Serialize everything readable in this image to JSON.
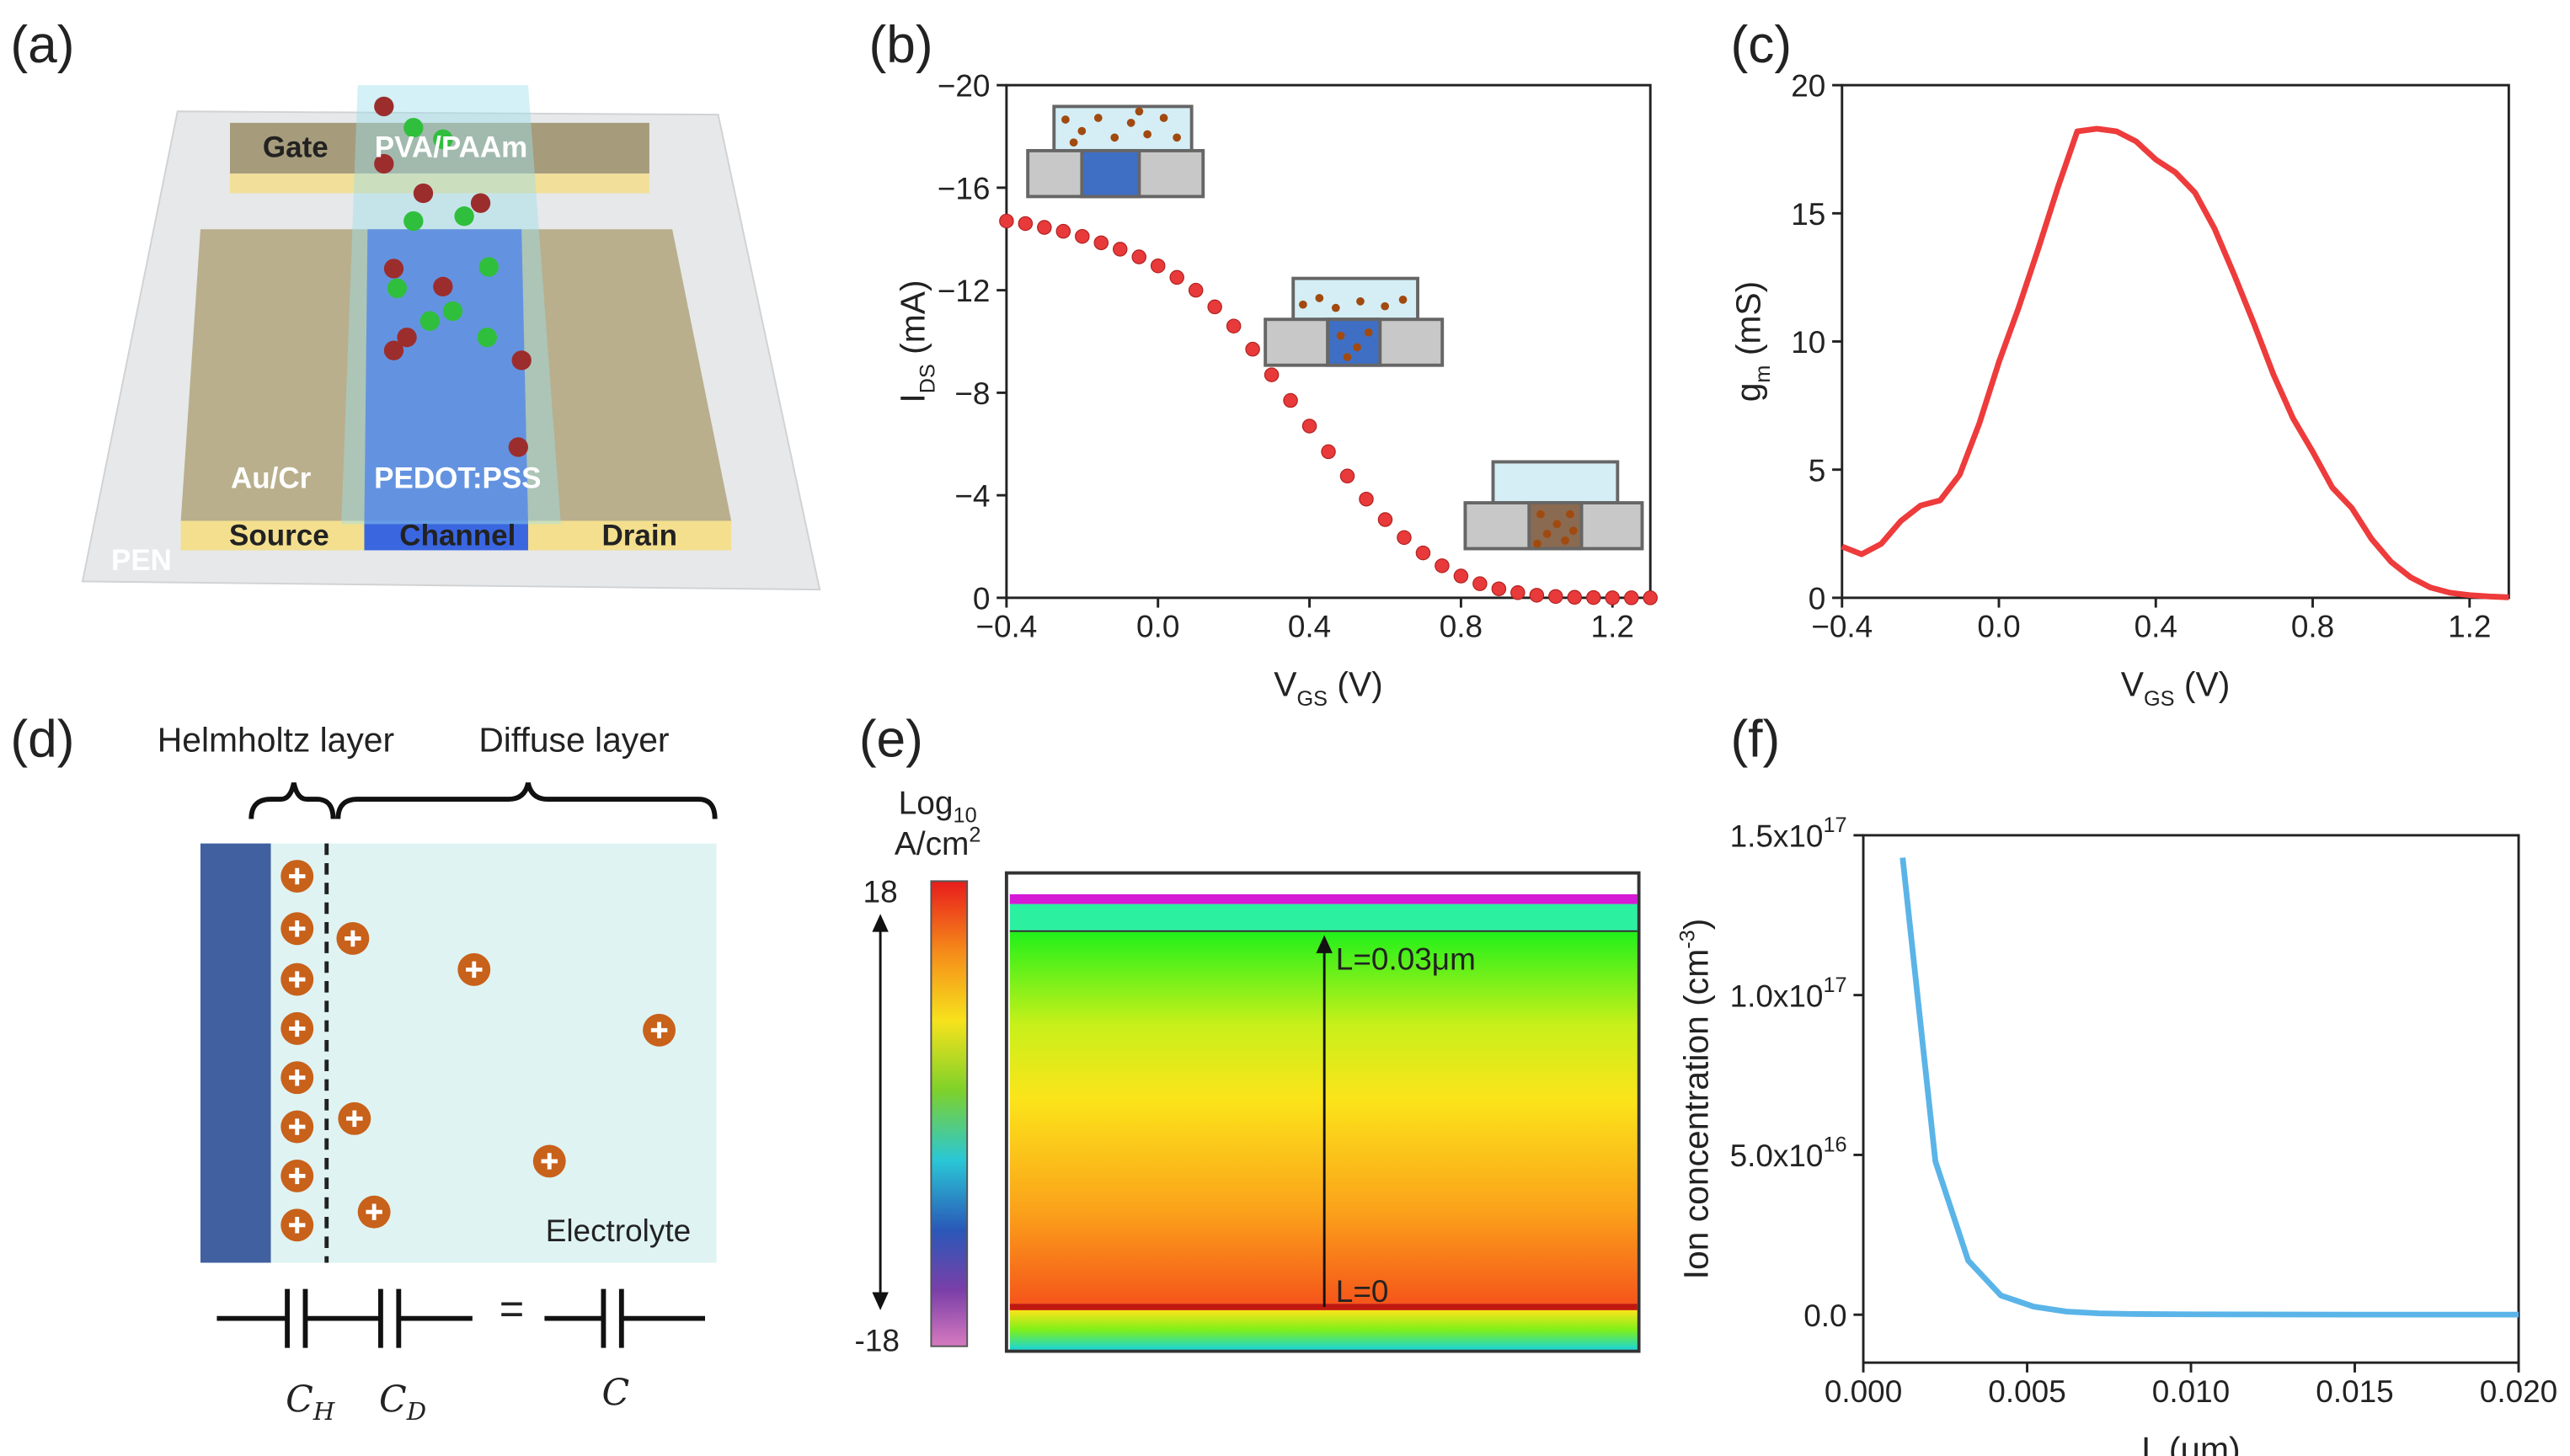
{
  "panel_labels": [
    "(a)",
    "(b)",
    "(c)",
    "(d)",
    "(e)",
    "(f)"
  ],
  "illustration": {
    "labels": [
      "Gate",
      "PVA/PAAm",
      "Au/Cr",
      "PEDOT:PSS",
      "Source",
      "Channel",
      "Drain",
      "PEN"
    ]
  },
  "diagram": {
    "helmholtz": "Helmholtz layer",
    "diffuse": "Diffuse layer",
    "electrolyte": "Electrolyte",
    "equals": "=",
    "c_h": {
      "main": "C",
      "sub": "H"
    },
    "c_d": {
      "main": "C",
      "sub": "D"
    },
    "c_total": "C"
  },
  "simulation": {
    "colorbar_title": [
      {
        "text": "Log"
      },
      {
        "text": "10",
        "script": "sub"
      }
    ],
    "colorbar_unit": [
      {
        "text": "A/cm"
      },
      {
        "text": "2",
        "script": "sup"
      }
    ],
    "colorbar_max": "18",
    "colorbar_min": "-18",
    "annotations": [
      "L=0.03μm",
      "L=0"
    ]
  },
  "chart_data": [
    {
      "type": "scatter",
      "color": "#e83a3a",
      "xlabel": [
        {
          "text": "V"
        },
        {
          "text": "GS",
          "script": "sub"
        },
        {
          "text": " (V)"
        }
      ],
      "ylabel": [
        {
          "text": "I"
        },
        {
          "text": "DS",
          "script": "sub"
        },
        {
          "text": " (mA)"
        }
      ],
      "xlim": [
        -0.4,
        1.3
      ],
      "ylim": [
        0,
        -20
      ],
      "xticks": [
        {
          "value": -0.4,
          "label": "−0.4"
        },
        {
          "value": 0,
          "label": "0.0"
        },
        {
          "value": 0.4,
          "label": "0.4"
        },
        {
          "value": 0.8,
          "label": "0.8"
        },
        {
          "value": 1.2,
          "label": "1.2"
        }
      ],
      "yticks": [
        0,
        {
          "value": -4,
          "label": "−4"
        },
        {
          "value": -8,
          "label": "−8"
        },
        {
          "value": -12,
          "label": "−12"
        },
        {
          "value": -16,
          "label": "−16"
        },
        {
          "value": -20,
          "label": "−20"
        }
      ],
      "x": [
        -0.4,
        -0.35,
        -0.3,
        -0.25,
        -0.2,
        -0.15,
        -0.1,
        -0.05,
        0,
        0.05,
        0.1,
        0.15,
        0.2,
        0.25,
        0.3,
        0.35,
        0.4,
        0.45,
        0.5,
        0.55,
        0.6,
        0.65,
        0.7,
        0.75,
        0.8,
        0.85,
        0.9,
        0.95,
        1.0,
        1.05,
        1.1,
        1.15,
        1.2,
        1.25,
        1.3
      ],
      "values": [
        -14.7,
        -14.6,
        -14.45,
        -14.3,
        -14.1,
        -13.85,
        -13.6,
        -13.3,
        -12.95,
        -12.5,
        -12.0,
        -11.35,
        -10.6,
        -9.7,
        -8.7,
        -7.7,
        -6.7,
        -5.7,
        -4.75,
        -3.85,
        -3.05,
        -2.35,
        -1.75,
        -1.25,
        -0.85,
        -0.55,
        -0.35,
        -0.2,
        -0.1,
        -0.05,
        -0.02,
        -0.01,
        0,
        0,
        0
      ]
    },
    {
      "type": "line",
      "color": "#ee3b3b",
      "xlabel": [
        {
          "text": "V"
        },
        {
          "text": "GS",
          "script": "sub"
        },
        {
          "text": " (V)"
        }
      ],
      "ylabel": [
        {
          "text": "g"
        },
        {
          "text": "m",
          "script": "sub"
        },
        {
          "text": " (mS)"
        }
      ],
      "xlim": [
        -0.4,
        1.3
      ],
      "ylim": [
        0,
        20
      ],
      "xticks": [
        {
          "value": -0.4,
          "label": "−0.4"
        },
        {
          "value": 0,
          "label": "0.0"
        },
        {
          "value": 0.4,
          "label": "0.4"
        },
        {
          "value": 0.8,
          "label": "0.8"
        },
        {
          "value": 1.2,
          "label": "1.2"
        }
      ],
      "yticks": [
        0,
        5,
        10,
        15,
        20
      ],
      "x": [
        -0.4,
        -0.35,
        -0.3,
        -0.25,
        -0.2,
        -0.15,
        -0.1,
        -0.05,
        0,
        0.05,
        0.1,
        0.15,
        0.2,
        0.25,
        0.3,
        0.35,
        0.4,
        0.45,
        0.5,
        0.55,
        0.6,
        0.65,
        0.7,
        0.75,
        0.8,
        0.85,
        0.9,
        0.95,
        1.0,
        1.05,
        1.1,
        1.15,
        1.2,
        1.25,
        1.3
      ],
      "values": [
        2.0,
        1.7,
        2.1,
        3.0,
        3.6,
        3.8,
        4.8,
        6.8,
        9.2,
        11.3,
        13.6,
        16.0,
        18.2,
        18.3,
        18.2,
        17.8,
        17.1,
        16.6,
        15.8,
        14.4,
        12.6,
        10.7,
        8.7,
        7.0,
        5.7,
        4.3,
        3.5,
        2.3,
        1.4,
        0.8,
        0.4,
        0.2,
        0.1,
        0.05,
        0.02
      ]
    },
    {
      "type": "line",
      "color": "#5ab4e8",
      "xlabel": [
        {
          "text": "L (μm)"
        }
      ],
      "ylabel": [
        {
          "text": "Ion concentration (cm"
        },
        {
          "text": "-3",
          "script": "sup"
        },
        {
          "text": ")"
        }
      ],
      "xlim": [
        0,
        0.02
      ],
      "ylim": [
        -15000000000000000,
        150000000000000000
      ],
      "xticks": [
        {
          "value": 0,
          "label": "0.000"
        },
        {
          "value": 0.005,
          "label": "0.005"
        },
        {
          "value": 0.01,
          "label": "0.010"
        },
        {
          "value": 0.015,
          "label": "0.015"
        },
        {
          "value": 0.02,
          "label": "0.020"
        }
      ],
      "yticks": [
        {
          "value": 0,
          "label": "0.0"
        },
        {
          "value": 50000000000000000,
          "label": "5.0x10",
          "sup": "16"
        },
        {
          "value": 100000000000000000,
          "label": "1.0x10",
          "sup": "17"
        },
        {
          "value": 150000000000000000,
          "label": "1.5x10",
          "sup": "17"
        }
      ],
      "x": [
        0.0012,
        0.0022,
        0.0032,
        0.0042,
        0.0052,
        0.0062,
        0.0072,
        0.0082,
        0.01,
        0.015,
        0.02
      ],
      "values": [
        143000000000000000,
        48000000000000000,
        17000000000000000,
        6000000000000000,
        2500000000000000,
        1000000000000000,
        400000000000000,
        200000000000000,
        100000000000000,
        0,
        0
      ]
    }
  ]
}
